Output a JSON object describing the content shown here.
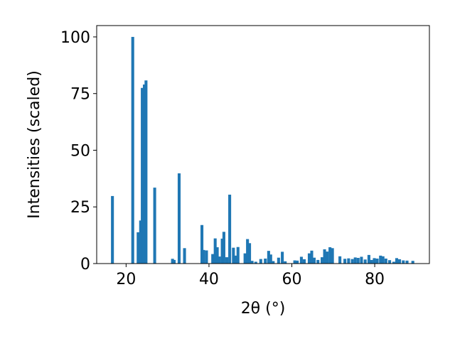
{
  "chart_data": {
    "type": "bar",
    "xlabel": "2θ (°)",
    "ylabel": "Intensities (scaled)",
    "xlim": [
      12.9,
      93.2
    ],
    "ylim": [
      0,
      105
    ],
    "xticks": [
      20,
      40,
      60,
      80
    ],
    "yticks": [
      0,
      25,
      50,
      75,
      100
    ],
    "grid": false,
    "bar_color": "#1f77b4",
    "bar_width": 0.7,
    "series": [
      {
        "x": [
          16.7,
          21.6,
          22.9,
          23.5,
          23.9,
          24.4,
          24.8,
          26.9,
          31.2,
          31.6,
          32.8,
          34.1,
          38.3,
          38.7,
          39.4,
          40.9,
          41.5,
          42.0,
          42.5,
          43.2,
          43.6,
          44.3,
          45.0,
          45.9,
          46.5,
          47.0,
          48.7,
          49.3,
          49.8,
          50.4,
          51.3,
          52.5,
          53.6,
          54.4,
          54.9,
          55.5,
          56.8,
          57.7,
          58.4,
          60.7,
          61.3,
          62.3,
          63.0,
          64.2,
          64.8,
          65.4,
          66.3,
          67.3,
          67.9,
          68.5,
          69.2,
          69.8,
          71.6,
          72.8,
          73.7,
          74.6,
          75.3,
          76.0,
          76.8,
          77.7,
          78.6,
          79.2,
          79.9,
          80.6,
          81.4,
          82.0,
          82.7,
          83.6,
          84.6,
          85.3,
          86.0,
          86.9,
          87.8,
          89.2
        ],
        "values": [
          29.8,
          100,
          13.8,
          19.0,
          77.5,
          79.0,
          80.8,
          33.5,
          2.1,
          1.6,
          39.8,
          6.8,
          17.0,
          6.0,
          5.8,
          4.2,
          11.1,
          7.2,
          3.1,
          11.0,
          14.0,
          2.8,
          30.4,
          7.0,
          3.5,
          7.3,
          4.5,
          10.8,
          9.0,
          1.2,
          0.8,
          2.0,
          2.2,
          5.6,
          4.0,
          1.1,
          2.6,
          5.2,
          1.0,
          1.4,
          1.3,
          3.0,
          1.9,
          4.5,
          5.7,
          2.6,
          1.6,
          2.8,
          6.3,
          5.3,
          7.2,
          6.8,
          3.2,
          2.1,
          2.3,
          2.0,
          2.7,
          2.5,
          3.0,
          1.8,
          3.8,
          1.6,
          2.4,
          2.2,
          3.5,
          3.2,
          2.2,
          1.5,
          0.8,
          2.4,
          1.9,
          1.4,
          1.3,
          1.2
        ]
      }
    ]
  }
}
